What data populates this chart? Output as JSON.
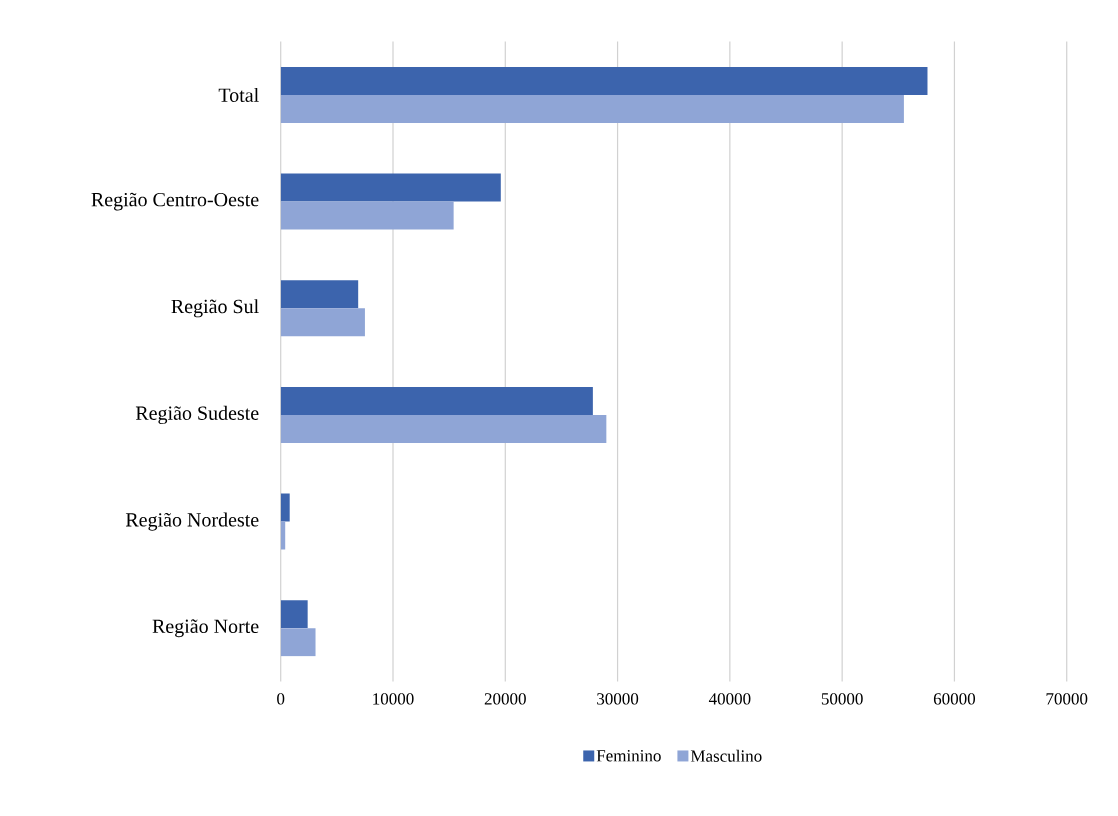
{
  "chart_data": {
    "type": "bar",
    "orientation": "horizontal",
    "categories": [
      "Total",
      "Região Centro-Oeste",
      "Região Sul",
      "Região Sudeste",
      "Região Nordeste",
      "Região Norte"
    ],
    "series": [
      {
        "name": "Feminino",
        "color": "#3c64ad",
        "values": [
          57600,
          19600,
          6900,
          27800,
          800,
          2400
        ]
      },
      {
        "name": "Masculino",
        "color": "#8fa5d6",
        "values": [
          55500,
          15400,
          7500,
          29000,
          400,
          3100
        ]
      }
    ],
    "xlim": [
      0,
      70000
    ],
    "xticks": [
      0,
      10000,
      20000,
      30000,
      40000,
      50000,
      60000,
      70000
    ],
    "grid": "x",
    "legend": "bottom"
  }
}
